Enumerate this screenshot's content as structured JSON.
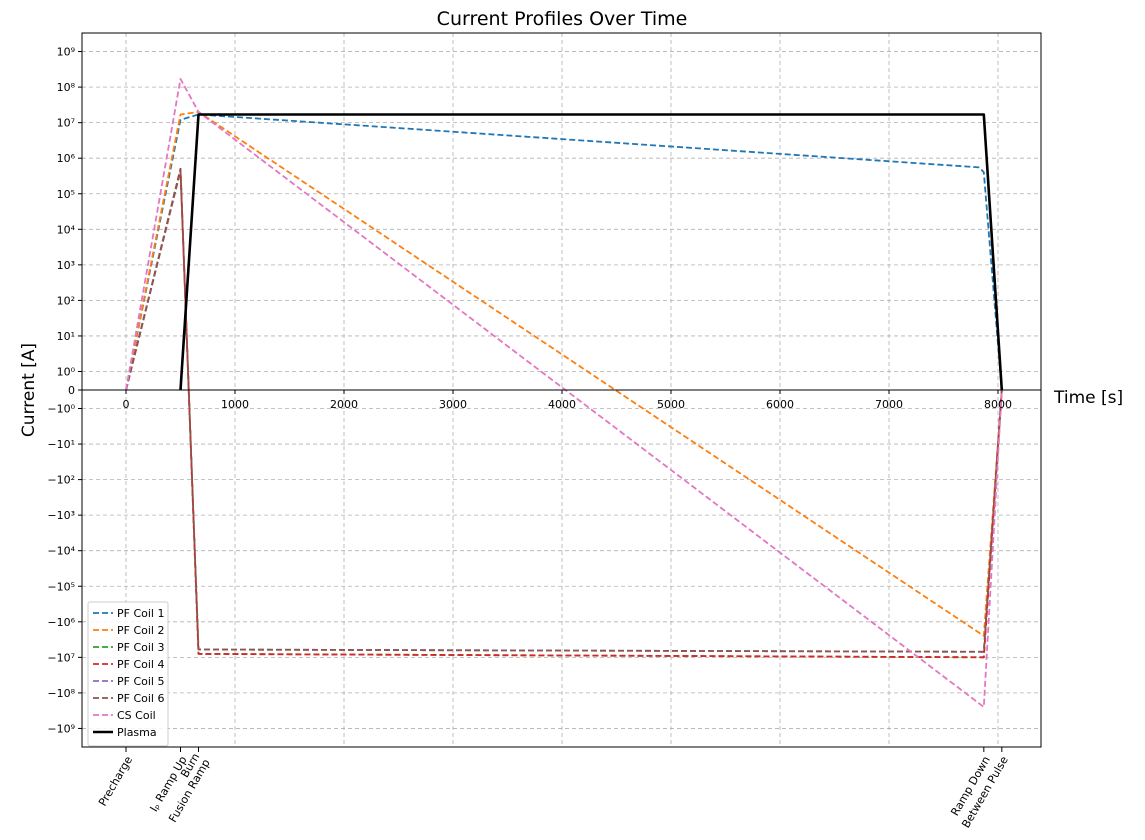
{
  "chart_data": {
    "type": "line",
    "title": "Current Profiles Over Time",
    "xlabel": "Time [s]",
    "ylabel": "Current [A]",
    "xlim": [
      -200,
      8400
    ],
    "ylim": [
      -1000000000.0,
      1000000000.0
    ],
    "yscale": "symlog",
    "grid": true,
    "legend_position": "lower-left",
    "x_ticks": [
      0,
      1000,
      2000,
      3000,
      4000,
      5000,
      6000,
      7000,
      8000
    ],
    "y_ticks_pos": [
      {
        "v": 0,
        "label": "0"
      },
      {
        "v": 1,
        "label": "10⁰"
      },
      {
        "v": 10,
        "label": "10¹"
      },
      {
        "v": 100,
        "label": "10²"
      },
      {
        "v": 1000,
        "label": "10³"
      },
      {
        "v": 10000,
        "label": "10⁴"
      },
      {
        "v": 100000,
        "label": "10⁵"
      },
      {
        "v": 1000000,
        "label": "10⁶"
      },
      {
        "v": 10000000,
        "label": "10⁷"
      },
      {
        "v": 100000000,
        "label": "10⁸"
      },
      {
        "v": 1000000000,
        "label": "10⁹"
      }
    ],
    "y_ticks_neg": [
      {
        "v": -1,
        "label": "−10⁰"
      },
      {
        "v": -10,
        "label": "−10¹"
      },
      {
        "v": -100,
        "label": "−10²"
      },
      {
        "v": -1000,
        "label": "−10³"
      },
      {
        "v": -10000,
        "label": "−10⁴"
      },
      {
        "v": -100000,
        "label": "−10⁵"
      },
      {
        "v": -1000000,
        "label": "−10⁶"
      },
      {
        "v": -10000000,
        "label": "−10⁷"
      },
      {
        "v": -100000000,
        "label": "−10⁸"
      },
      {
        "v": -1000000000,
        "label": "−10⁹"
      }
    ],
    "phase_ticks": [
      {
        "x": 0,
        "lines": [
          "Precharge"
        ]
      },
      {
        "x": 500,
        "lines": [
          "Iₚ Ramp Up"
        ]
      },
      {
        "x": 665,
        "lines": [
          "Burn",
          "Fusion Ramp"
        ]
      },
      {
        "x": 7870,
        "lines": [
          "Ramp Down"
        ]
      },
      {
        "x": 8035,
        "lines": [
          "Between Pulse"
        ]
      }
    ],
    "series": [
      {
        "name": "PF Coil 1",
        "color": "#1f77b4",
        "dash": true,
        "x": [
          0,
          500,
          665,
          7830,
          7870,
          8035
        ],
        "y": [
          0,
          12000000,
          17000000,
          550000,
          400000,
          0
        ]
      },
      {
        "name": "PF Coil 2",
        "color": "#ff7f0e",
        "dash": true,
        "x": [
          0,
          500,
          665,
          7870,
          8035
        ],
        "y": [
          0,
          17000000,
          20000000,
          -2500000,
          0
        ]
      },
      {
        "name": "PF Coil 3",
        "color": "#2ca02c",
        "dash": true,
        "x": [
          0,
          500,
          665,
          7870,
          8035
        ],
        "y": [
          0,
          500000,
          -8000000,
          -10000000,
          0
        ]
      },
      {
        "name": "PF Coil 4",
        "color": "#d62728",
        "dash": true,
        "x": [
          0,
          500,
          665,
          7870,
          8035
        ],
        "y": [
          0,
          500000,
          -8000000,
          -10000000,
          0
        ]
      },
      {
        "name": "PF Coil 5",
        "color": "#9467bd",
        "dash": true,
        "x": [
          0,
          500,
          665,
          7870,
          8035
        ],
        "y": [
          0,
          450000,
          -6000000,
          -7000000,
          0
        ]
      },
      {
        "name": "PF Coil 6",
        "color": "#8c564b",
        "dash": true,
        "x": [
          0,
          500,
          665,
          7870,
          8035
        ],
        "y": [
          0,
          450000,
          -6000000,
          -7000000,
          0
        ]
      },
      {
        "name": "CS Coil",
        "color": "#e377c2",
        "dash": true,
        "x": [
          0,
          500,
          665,
          7870,
          8035
        ],
        "y": [
          0,
          170000000,
          20000000,
          -250000000,
          0
        ]
      },
      {
        "name": "Plasma",
        "color": "#000000",
        "dash": false,
        "x": [
          500,
          665,
          7870,
          8035
        ],
        "y": [
          0,
          17000000,
          17000000,
          0
        ]
      }
    ]
  }
}
